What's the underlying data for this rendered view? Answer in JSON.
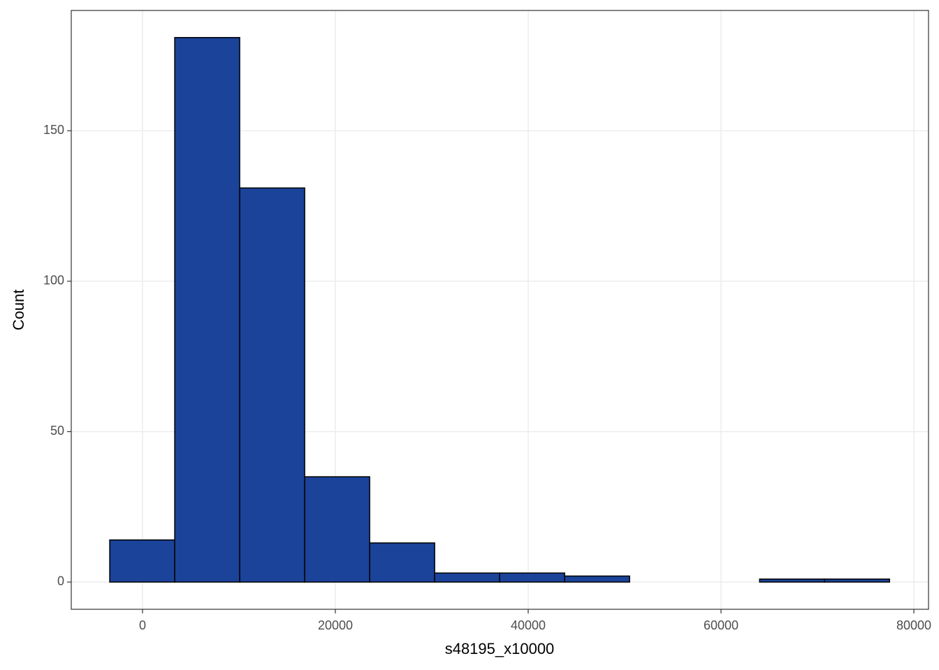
{
  "chart_data": {
    "type": "histogram",
    "x_label": "s48195_x10000",
    "y_label": "Count",
    "bins": [
      -3400,
      3340,
      10080,
      16820,
      23560,
      30300,
      37040,
      43780,
      50520,
      57260,
      64000,
      70740,
      77480
    ],
    "values": [
      14,
      181,
      131,
      35,
      13,
      3,
      3,
      2,
      0,
      0,
      1,
      1
    ],
    "color": "#1a4399",
    "edge_color": "#000000",
    "xlim": [
      -7390,
      81520
    ],
    "ylim": [
      -9.05,
      190
    ],
    "xticks": [
      0,
      20000,
      40000,
      60000,
      80000
    ],
    "yticks": [
      0,
      50,
      100,
      150
    ],
    "grid": true
  }
}
